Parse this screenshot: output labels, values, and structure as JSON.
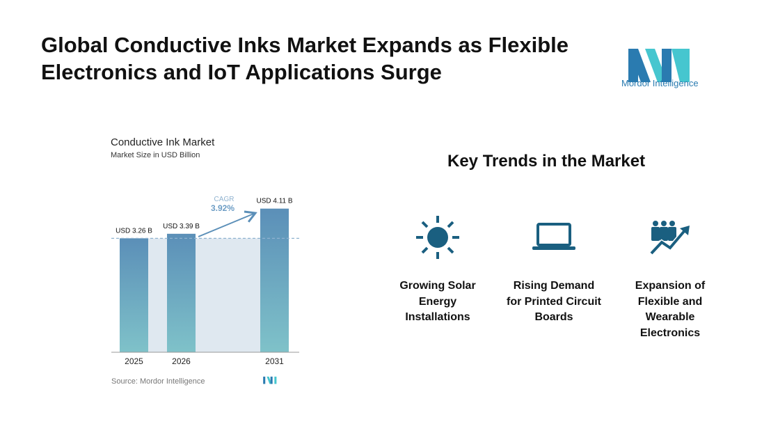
{
  "header": {
    "title": "Global Conductive Inks Market Expands as Flexible Electronics and IoT Applications Surge",
    "logo_text": "Mordor Intelligence"
  },
  "chart_data": {
    "type": "bar",
    "title": "Conductive Ink Market",
    "subtitle": "Market Size in USD Billion",
    "categories": [
      "2025",
      "2026",
      "2031"
    ],
    "values": [
      3.26,
      3.39,
      4.11
    ],
    "data_labels": [
      "USD 3.26 B",
      "USD 3.39 B",
      "USD 4.11 B"
    ],
    "annotation": {
      "label": "CAGR",
      "value": "3.92%"
    },
    "source": "Source: Mordor Intelligence",
    "colors": {
      "bar_top": "#5b8fb8",
      "bar_bottom": "#7fc2c9",
      "band": "#dfe8f0",
      "accent": "#5b8fb8"
    }
  },
  "trends": {
    "heading": "Key Trends in the Market",
    "items": [
      {
        "icon": "sun-icon",
        "label": "Growing Solar Energy Installations"
      },
      {
        "icon": "laptop-icon",
        "label": "Rising Demand for Printed Circuit Boards"
      },
      {
        "icon": "people-growth-icon",
        "label": "Expansion of Flexible and Wearable Electronics"
      }
    ],
    "icon_color": "#1a5f80"
  }
}
